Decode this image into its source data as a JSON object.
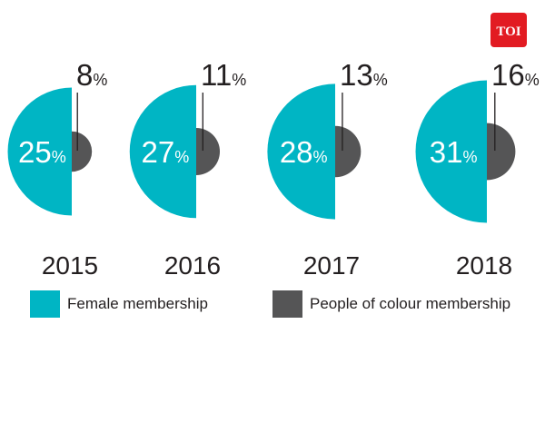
{
  "logo": {
    "text": "TOI",
    "color": "#e21b22"
  },
  "colors": {
    "female": "#00b5c4",
    "poc": "#555556",
    "text": "#231f20",
    "pointer": "#231f20"
  },
  "chart_data": {
    "type": "semicircle-pair",
    "title": "",
    "unit": "%",
    "categories": [
      "2015",
      "2016",
      "2017",
      "2018"
    ],
    "series": [
      {
        "name": "Female membership",
        "values": [
          25,
          27,
          28,
          31
        ]
      },
      {
        "name": "People of colour membership",
        "values": [
          8,
          11,
          13,
          16
        ]
      }
    ],
    "legend_placement": "bottom"
  }
}
